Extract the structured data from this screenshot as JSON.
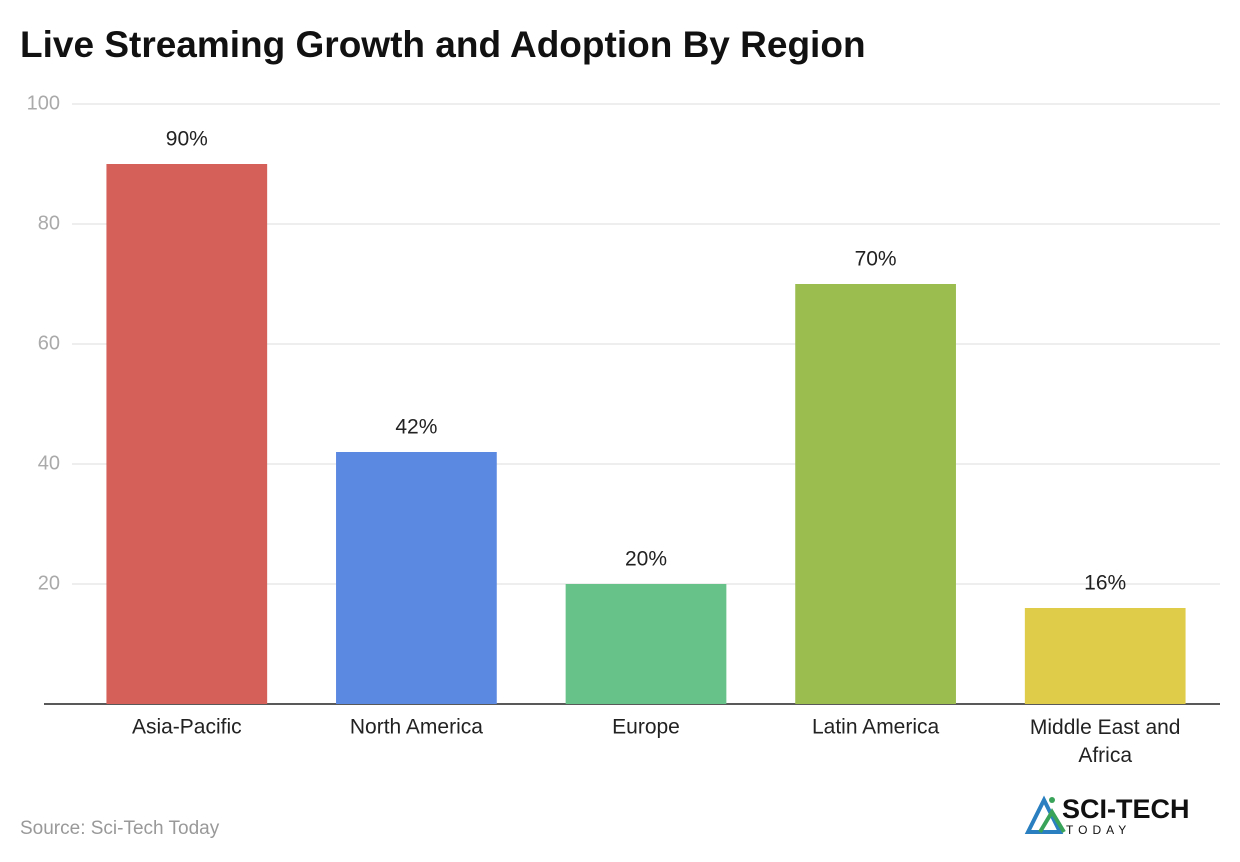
{
  "chart_data": {
    "type": "bar",
    "title": "Live Streaming Growth and Adoption By Region",
    "categories": [
      "Asia-Pacific",
      "North America",
      "Europe",
      "Latin America",
      "Middle East and Africa"
    ],
    "values": [
      90,
      42,
      20,
      70,
      16
    ],
    "value_labels": [
      "90%",
      "42%",
      "20%",
      "70%",
      "16%"
    ],
    "colors": [
      "#d5605a",
      "#5b88e0",
      "#67c289",
      "#9bbd50",
      "#dfcc48"
    ],
    "ylim": [
      0,
      100
    ],
    "yticks": [
      20,
      40,
      60,
      80,
      100
    ],
    "grid": true,
    "source": "Source: Sci-Tech Today",
    "logo": {
      "name": "SCI-TECH",
      "tagline": "TODAY"
    }
  }
}
